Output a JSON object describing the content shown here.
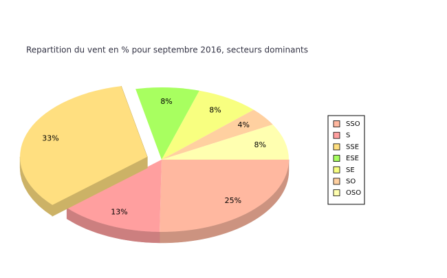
{
  "chart_data": {
    "type": "pie3d",
    "title": "Repartition du vent en % pour septembre 2016, secteurs dominants",
    "categories": [
      "SSO",
      "S",
      "SSE",
      "ESE",
      "SE",
      "SO",
      "OSO"
    ],
    "values": [
      25,
      13,
      33,
      8,
      8,
      4,
      8
    ],
    "value_labels": [
      "25%",
      "13%",
      "33%",
      "8%",
      "8%",
      "4%",
      "8%"
    ],
    "colors": [
      "#ffb8a0",
      "#ff9f9f",
      "#ffdf80",
      "#a8ff60",
      "#f8ff80",
      "#ffd0a0",
      "#ffffb0"
    ],
    "exploded": [
      false,
      false,
      true,
      false,
      false,
      false,
      false
    ],
    "legend": "right"
  }
}
